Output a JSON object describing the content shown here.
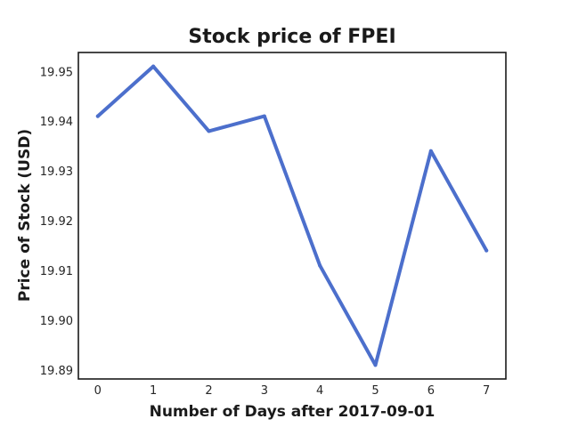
{
  "chart_data": {
    "type": "line",
    "title": "Stock price of FPEI",
    "xlabel": "Number of Days after 2017-09-01",
    "ylabel": "Price of Stock (USD)",
    "x": [
      0,
      1,
      2,
      3,
      4,
      5,
      6,
      7
    ],
    "xticks": [
      "0",
      "1",
      "2",
      "3",
      "4",
      "5",
      "6",
      "7"
    ],
    "yticks": [
      "19.89",
      "19.90",
      "19.91",
      "19.92",
      "19.93",
      "19.94",
      "19.95"
    ],
    "xlim": [
      -0.35,
      7.35
    ],
    "ylim": [
      19.8882,
      19.9538
    ],
    "series": [
      {
        "values": [
          19.941,
          19.951,
          19.938,
          19.941,
          19.911,
          19.891,
          19.934,
          19.914
        ]
      }
    ],
    "grid": false,
    "color": "#4c6fcc"
  }
}
